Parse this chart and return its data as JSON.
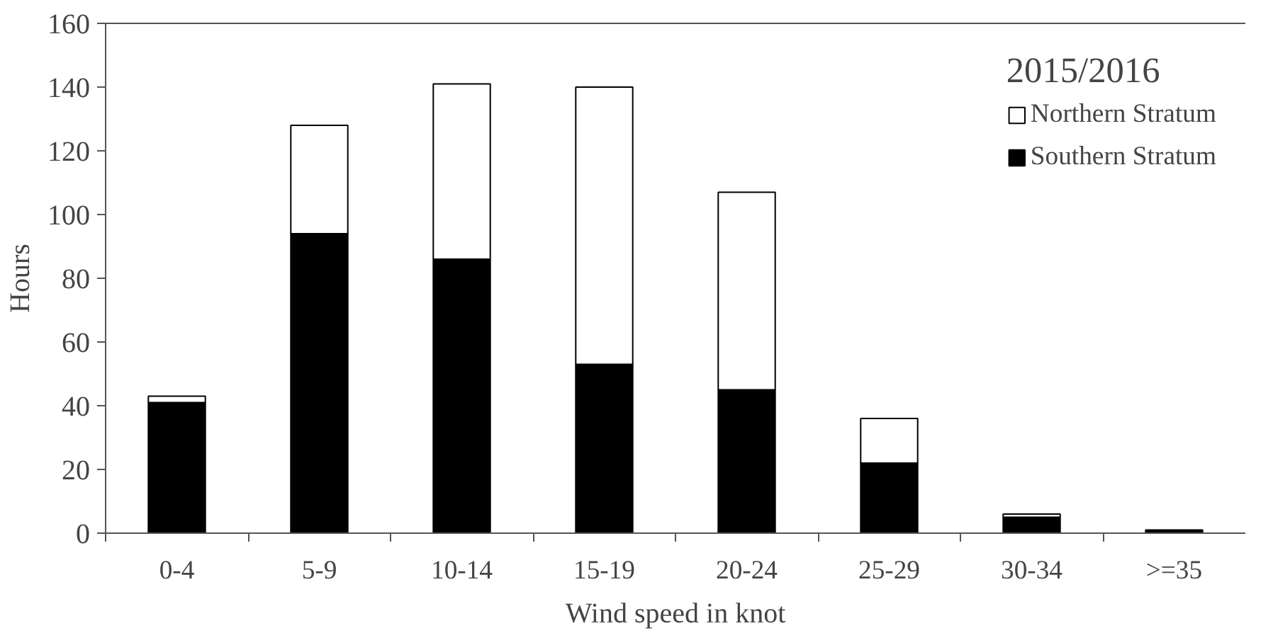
{
  "chart_data": {
    "type": "bar",
    "stacked": true,
    "xlabel": "Wind speed in knot",
    "ylabel": "Hours",
    "legend_title": "2015/2016",
    "categories": [
      "0-4",
      "5-9",
      "10-14",
      "15-19",
      "20-24",
      "25-29",
      "30-34",
      ">=35"
    ],
    "series": [
      {
        "name": "Southern Stratum",
        "color": "#000000",
        "values": [
          41,
          94,
          86,
          53,
          45,
          22,
          5,
          1
        ]
      },
      {
        "name": "Northern Stratum",
        "color": "#ffffff",
        "values": [
          2,
          34,
          55,
          87,
          62,
          14,
          1,
          0
        ]
      }
    ],
    "ylim": [
      0,
      160
    ],
    "yticks": [
      0,
      20,
      40,
      60,
      80,
      100,
      120,
      140,
      160
    ],
    "grid": false,
    "legend": "top right"
  }
}
